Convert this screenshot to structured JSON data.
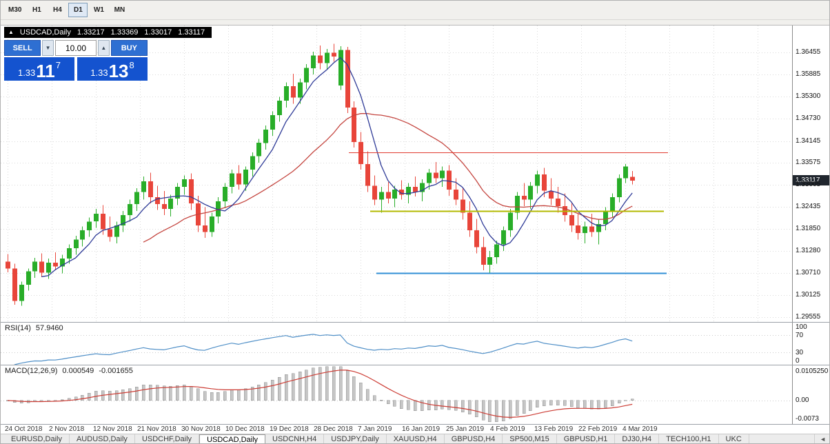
{
  "toolbar": {
    "timeframes": [
      {
        "label": "M30",
        "active": false
      },
      {
        "label": "H1",
        "active": false
      },
      {
        "label": "H4",
        "active": false
      },
      {
        "label": "D1",
        "active": true
      },
      {
        "label": "W1",
        "active": false
      },
      {
        "label": "MN",
        "active": false
      }
    ]
  },
  "chart": {
    "title": "USDCAD,Daily",
    "open": "1.33217",
    "high": "1.33369",
    "low": "1.33017",
    "close": "1.33117",
    "collapse_icon": "▲"
  },
  "trade_panel": {
    "sell_label": "SELL",
    "buy_label": "BUY",
    "volume": "10.00",
    "caret_down": "▼",
    "caret_up": "▲",
    "sell_price": {
      "prefix": "1.33",
      "big": "11",
      "sup": "7"
    },
    "buy_price": {
      "prefix": "1.33",
      "big": "13",
      "sup": "8"
    }
  },
  "price_scale": {
    "labels": [
      "1.36455",
      "1.35885",
      "1.35300",
      "1.34730",
      "1.34145",
      "1.33575",
      "1.33005",
      "1.32435",
      "1.31850",
      "1.31280",
      "1.30710",
      "1.30125",
      "1.29555"
    ],
    "current": "1.33117"
  },
  "chart_data": {
    "type": "candlestick",
    "symbol": "USDCAD",
    "timeframe": "Daily",
    "y_range": [
      1.2943,
      1.3716
    ],
    "x_labels": [
      "24 Oct 2018",
      "2 Nov 2018",
      "12 Nov 2018",
      "21 Nov 2018",
      "30 Nov 2018",
      "10 Dec 2018",
      "19 Dec 2018",
      "28 Dec 2018",
      "7 Jan 2019",
      "16 Jan 2019",
      "25 Jan 2019",
      "4 Feb 2019",
      "13 Feb 2019",
      "22 Feb 2019",
      "4 Mar 2019"
    ],
    "ma_fast_period": 6,
    "ma_slow_period": 21,
    "hlines": [
      {
        "name": "red-resistance-line",
        "price": 1.3385,
        "x1": 505,
        "x2": 968,
        "color": "hline-red",
        "width": 1
      },
      {
        "name": "yellow-pivot-line",
        "price": 1.3233,
        "x1": 536,
        "x2": 962,
        "color": "hline-yellow",
        "width": 2
      },
      {
        "name": "blue-support-line",
        "price": 1.307,
        "x1": 545,
        "x2": 966,
        "color": "hline-blue",
        "width": 2
      }
    ],
    "candles": [
      [
        1.31,
        1.312,
        1.3072,
        1.3082
      ],
      [
        1.3082,
        1.3095,
        1.2988,
        1.2998
      ],
      [
        1.2998,
        1.3048,
        1.2985,
        1.304
      ],
      [
        1.304,
        1.3082,
        1.3025,
        1.3075
      ],
      [
        1.3075,
        1.311,
        1.3058,
        1.31
      ],
      [
        1.31,
        1.3122,
        1.306,
        1.3072
      ],
      [
        1.3072,
        1.3108,
        1.3055,
        1.3098
      ],
      [
        1.3098,
        1.3125,
        1.3078,
        1.3088
      ],
      [
        1.3088,
        1.3118,
        1.307,
        1.3108
      ],
      [
        1.3108,
        1.3145,
        1.3095,
        1.3135
      ],
      [
        1.3135,
        1.3168,
        1.3118,
        1.3158
      ],
      [
        1.3158,
        1.3192,
        1.314,
        1.3182
      ],
      [
        1.3182,
        1.3215,
        1.3165,
        1.3205
      ],
      [
        1.3205,
        1.3238,
        1.3188,
        1.3225
      ],
      [
        1.3225,
        1.3248,
        1.317,
        1.3185
      ],
      [
        1.3185,
        1.3218,
        1.3152,
        1.3165
      ],
      [
        1.3165,
        1.3205,
        1.3148,
        1.3195
      ],
      [
        1.3195,
        1.3232,
        1.3178,
        1.3222
      ],
      [
        1.3222,
        1.3262,
        1.3205,
        1.325
      ],
      [
        1.325,
        1.3292,
        1.3232,
        1.3282
      ],
      [
        1.3282,
        1.3322,
        1.3262,
        1.331
      ],
      [
        1.331,
        1.3332,
        1.3252,
        1.3268
      ],
      [
        1.3268,
        1.3298,
        1.3235,
        1.325
      ],
      [
        1.325,
        1.3285,
        1.3222,
        1.3238
      ],
      [
        1.3238,
        1.3275,
        1.3218,
        1.3265
      ],
      [
        1.3265,
        1.3305,
        1.3248,
        1.3295
      ],
      [
        1.3295,
        1.3325,
        1.3275,
        1.3315
      ],
      [
        1.3315,
        1.333,
        1.3235,
        1.3252
      ],
      [
        1.3252,
        1.3272,
        1.3178,
        1.3195
      ],
      [
        1.3195,
        1.3242,
        1.3162,
        1.3178
      ],
      [
        1.3178,
        1.3228,
        1.3165,
        1.3218
      ],
      [
        1.3218,
        1.3268,
        1.32,
        1.3258
      ],
      [
        1.3258,
        1.3305,
        1.324,
        1.3295
      ],
      [
        1.3295,
        1.334,
        1.3278,
        1.333
      ],
      [
        1.333,
        1.3352,
        1.3288,
        1.3302
      ],
      [
        1.3302,
        1.3348,
        1.3285,
        1.334
      ],
      [
        1.334,
        1.3385,
        1.3322,
        1.3375
      ],
      [
        1.3375,
        1.342,
        1.3358,
        1.341
      ],
      [
        1.341,
        1.3455,
        1.3392,
        1.3445
      ],
      [
        1.3445,
        1.3492,
        1.3428,
        1.3482
      ],
      [
        1.3482,
        1.353,
        1.3465,
        1.352
      ],
      [
        1.352,
        1.3568,
        1.3502,
        1.3558
      ],
      [
        1.3558,
        1.359,
        1.3512,
        1.3528
      ],
      [
        1.3528,
        1.3578,
        1.3512,
        1.3568
      ],
      [
        1.3568,
        1.3615,
        1.355,
        1.3605
      ],
      [
        1.3605,
        1.3648,
        1.3588,
        1.3638
      ],
      [
        1.3638,
        1.3664,
        1.3602,
        1.3618
      ],
      [
        1.3618,
        1.3655,
        1.36,
        1.3645
      ],
      [
        1.3645,
        1.3668,
        1.3622,
        1.3635
      ],
      [
        1.356,
        1.3662,
        1.3548,
        1.3652
      ],
      [
        1.3652,
        1.366,
        1.3488,
        1.3502
      ],
      [
        1.3502,
        1.3518,
        1.3398,
        1.3412
      ],
      [
        1.3412,
        1.3438,
        1.334,
        1.3355
      ],
      [
        1.3355,
        1.3388,
        1.3282,
        1.3298
      ],
      [
        1.3298,
        1.3325,
        1.3248,
        1.3262
      ],
      [
        1.3262,
        1.3295,
        1.3228,
        1.3282
      ],
      [
        1.3282,
        1.3308,
        1.3252,
        1.3265
      ],
      [
        1.3265,
        1.3298,
        1.3242,
        1.3288
      ],
      [
        1.3288,
        1.3312,
        1.3262,
        1.3275
      ],
      [
        1.3275,
        1.3305,
        1.3252,
        1.3295
      ],
      [
        1.3295,
        1.3322,
        1.327,
        1.3282
      ],
      [
        1.3282,
        1.3315,
        1.3258,
        1.3305
      ],
      [
        1.3305,
        1.3342,
        1.3288,
        1.3332
      ],
      [
        1.3332,
        1.336,
        1.3305,
        1.3318
      ],
      [
        1.3318,
        1.3348,
        1.3295,
        1.3338
      ],
      [
        1.3338,
        1.3352,
        1.3272,
        1.3288
      ],
      [
        1.3288,
        1.3318,
        1.3248,
        1.3262
      ],
      [
        1.3262,
        1.3292,
        1.321,
        1.3228
      ],
      [
        1.3228,
        1.3258,
        1.3165,
        1.3182
      ],
      [
        1.3182,
        1.3212,
        1.3122,
        1.3138
      ],
      [
        1.3138,
        1.3165,
        1.3078,
        1.3092
      ],
      [
        1.3092,
        1.3128,
        1.3068,
        1.3112
      ],
      [
        1.3112,
        1.3155,
        1.3095,
        1.3145
      ],
      [
        1.3145,
        1.3192,
        1.3128,
        1.3182
      ],
      [
        1.3182,
        1.3238,
        1.3165,
        1.3228
      ],
      [
        1.3228,
        1.3282,
        1.321,
        1.3272
      ],
      [
        1.3272,
        1.3305,
        1.3245,
        1.3262
      ],
      [
        1.3262,
        1.3308,
        1.3238,
        1.3298
      ],
      [
        1.3298,
        1.3338,
        1.3278,
        1.3328
      ],
      [
        1.3328,
        1.3345,
        1.3268,
        1.3285
      ],
      [
        1.3285,
        1.3318,
        1.3248,
        1.3265
      ],
      [
        1.3265,
        1.3295,
        1.3228,
        1.3245
      ],
      [
        1.3245,
        1.3278,
        1.3205,
        1.3222
      ],
      [
        1.3222,
        1.3255,
        1.3178,
        1.3195
      ],
      [
        1.3195,
        1.3228,
        1.3158,
        1.3175
      ],
      [
        1.3175,
        1.3205,
        1.3148,
        1.3192
      ],
      [
        1.3192,
        1.3225,
        1.3165,
        1.3178
      ],
      [
        1.3178,
        1.321,
        1.3145,
        1.3198
      ],
      [
        1.3198,
        1.3242,
        1.3182,
        1.3232
      ],
      [
        1.3232,
        1.3278,
        1.3215,
        1.3268
      ],
      [
        1.3268,
        1.3328,
        1.3255,
        1.3318
      ],
      [
        1.3318,
        1.3355,
        1.3305,
        1.3348
      ],
      [
        1.33217,
        1.33369,
        1.33017,
        1.33117
      ]
    ]
  },
  "rsi": {
    "label": "RSI(14)",
    "value": "57.9460",
    "period": 14,
    "levels": [
      70,
      30
    ],
    "scale_labels": [
      "100",
      "70",
      "30",
      "0"
    ]
  },
  "macd": {
    "label": "MACD(12,26,9)",
    "value_main": "0.000549",
    "value_signal": "-0.001655",
    "fast": 12,
    "slow": 26,
    "signal": 9,
    "scale_top": "0.0105250",
    "scale_zero": "0.00",
    "scale_bottom": "-0.0073"
  },
  "tab_bar": {
    "scroll_icon": "◄",
    "tabs": [
      {
        "label": "EURUSD,Daily",
        "active": false
      },
      {
        "label": "AUDUSD,Daily",
        "active": false
      },
      {
        "label": "USDCHF,Daily",
        "active": false
      },
      {
        "label": "USDCAD,Daily",
        "active": true
      },
      {
        "label": "USDCNH,H4",
        "active": false
      },
      {
        "label": "USDJPY,Daily",
        "active": false
      },
      {
        "label": "XAUUSD,H4",
        "active": false
      },
      {
        "label": "GBPUSD,H4",
        "active": false
      },
      {
        "label": "SP500,M15",
        "active": false
      },
      {
        "label": "GBPUSD,H1",
        "active": false
      },
      {
        "label": "DJ30,H4",
        "active": false
      },
      {
        "label": "TECH100,H1",
        "active": false
      },
      {
        "label": "UKC",
        "active": false
      }
    ]
  },
  "colors": {
    "grid": "#d9d9d9",
    "candle-up": "#28ad28",
    "candle-down": "#e8453a",
    "ma-fast": "#2e3a97",
    "ma-slow": "#c4443e",
    "rsi-line": "#4f8fc7",
    "macd-hist": "#c6c6c6",
    "macd-hist-stroke": "#909090",
    "macd-signal": "#cc3b33",
    "hline-red": "#e03a30",
    "hline-yellow": "#b3b800",
    "hline-blue": "#2f8fd6",
    "badge-bg": "#20262e",
    "trade-btn": "#2e6fd2",
    "trade-box": "#1453cf",
    "toolbar-active": "#dfe9f5"
  }
}
